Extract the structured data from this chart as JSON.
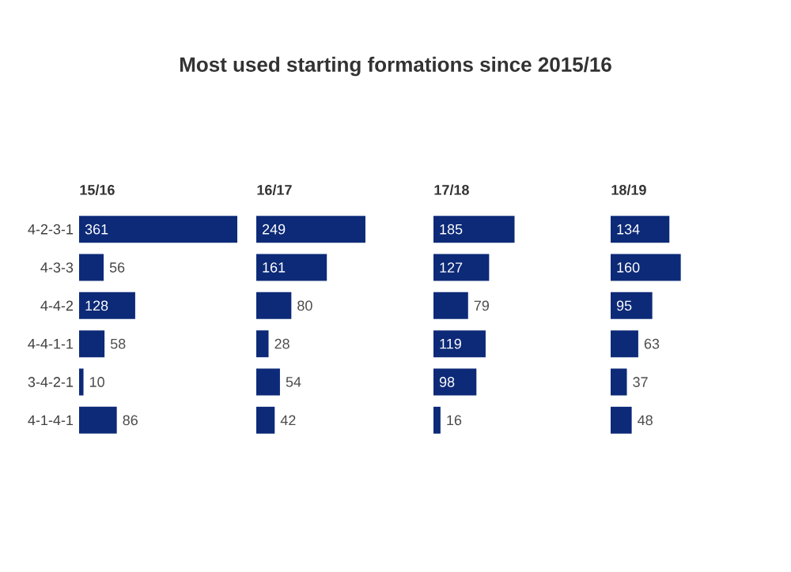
{
  "chart_data": [
    {
      "type": "bar",
      "orientation": "horizontal",
      "title": "Most used starting formations since 2015/16",
      "subtitle": "15/16",
      "categories": [
        "4-2-3-1",
        "4-3-3",
        "4-4-2",
        "4-4-1-1",
        "3-4-2-1",
        "4-1-4-1"
      ],
      "values": [
        361,
        56,
        128,
        58,
        10,
        86
      ],
      "color": "#0d2a78",
      "data_labels": true,
      "tick_labels": "y"
    },
    {
      "type": "bar",
      "orientation": "horizontal",
      "subtitle": "16/17",
      "categories": [
        null,
        null,
        null,
        null,
        null,
        null
      ],
      "values": [
        249,
        161,
        80,
        28,
        54,
        42
      ],
      "color": "#0d2a78",
      "data_labels": true
    },
    {
      "type": "bar",
      "orientation": "horizontal",
      "subtitle": "17/18",
      "categories": [
        null,
        null,
        null,
        null,
        null,
        null
      ],
      "values": [
        185,
        127,
        79,
        119,
        98,
        16
      ],
      "color": "#0d2a78",
      "data_labels": true
    },
    {
      "type": "bar",
      "orientation": "horizontal",
      "subtitle": "18/19",
      "categories": [
        null,
        null,
        null,
        null,
        null,
        null
      ],
      "values": [
        134,
        160,
        95,
        63,
        37,
        48
      ],
      "color": "#0d2a78",
      "data_labels": true
    }
  ]
}
